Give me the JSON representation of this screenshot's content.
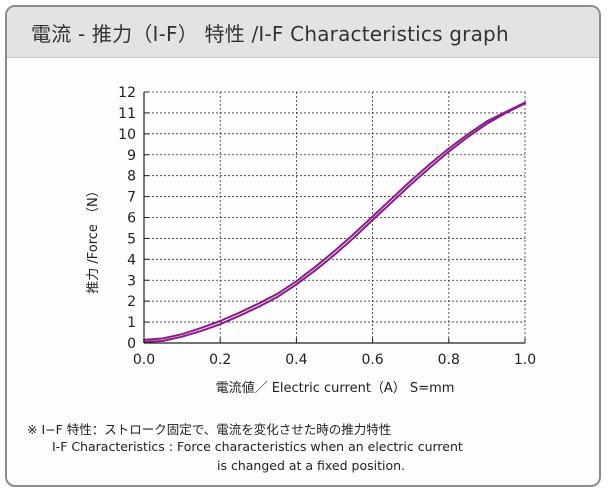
{
  "header": {
    "title": "電流 - 推力（I-F） 特性 /I-F Characteristics graph"
  },
  "chart_data": {
    "type": "line",
    "title": "電流 - 推力（I-F） 特性 /I-F Characteristics graph",
    "xlabel": "電流値／ Electric current（A） S=mm",
    "ylabel": "推力 /Force （N）",
    "xlim": [
      0,
      1.0
    ],
    "ylim": [
      0,
      12
    ],
    "x_ticks": [
      "0.0",
      "0.2",
      "0.4",
      "0.6",
      "0.8",
      "1.0"
    ],
    "y_ticks": [
      "0",
      "1",
      "2",
      "3",
      "4",
      "5",
      "6",
      "7",
      "8",
      "9",
      "10",
      "11",
      "12"
    ],
    "grid": true,
    "series_color": "#8b1a8b",
    "series": [
      {
        "values": [
          [
            0.0,
            0.15
          ],
          [
            0.05,
            0.22
          ],
          [
            0.1,
            0.42
          ],
          [
            0.15,
            0.72
          ],
          [
            0.2,
            1.05
          ],
          [
            0.25,
            1.45
          ],
          [
            0.3,
            1.88
          ],
          [
            0.35,
            2.35
          ],
          [
            0.4,
            2.95
          ],
          [
            0.45,
            3.65
          ],
          [
            0.5,
            4.4
          ],
          [
            0.55,
            5.2
          ],
          [
            0.6,
            6.05
          ],
          [
            0.65,
            6.9
          ],
          [
            0.7,
            7.75
          ],
          [
            0.75,
            8.55
          ],
          [
            0.8,
            9.3
          ],
          [
            0.85,
            9.98
          ],
          [
            0.9,
            10.6
          ],
          [
            0.95,
            11.05
          ],
          [
            1.0,
            11.5
          ]
        ]
      },
      {
        "values": [
          [
            0.0,
            0.05
          ],
          [
            0.05,
            0.1
          ],
          [
            0.1,
            0.3
          ],
          [
            0.15,
            0.58
          ],
          [
            0.2,
            0.9
          ],
          [
            0.25,
            1.3
          ],
          [
            0.3,
            1.72
          ],
          [
            0.35,
            2.2
          ],
          [
            0.4,
            2.8
          ],
          [
            0.45,
            3.48
          ],
          [
            0.5,
            4.22
          ],
          [
            0.55,
            5.02
          ],
          [
            0.6,
            5.88
          ],
          [
            0.65,
            6.72
          ],
          [
            0.7,
            7.58
          ],
          [
            0.75,
            8.38
          ],
          [
            0.8,
            9.15
          ],
          [
            0.85,
            9.85
          ],
          [
            0.9,
            10.48
          ],
          [
            0.95,
            11.0
          ],
          [
            1.0,
            11.45
          ]
        ]
      }
    ]
  },
  "notes": {
    "line1": "※ I−F 特性：ストローク固定で、電流を変化させた時の推力特性",
    "line2": "I-F Characteristics : Force characteristics when an electric current",
    "line3": "is changed at a fixed position."
  }
}
